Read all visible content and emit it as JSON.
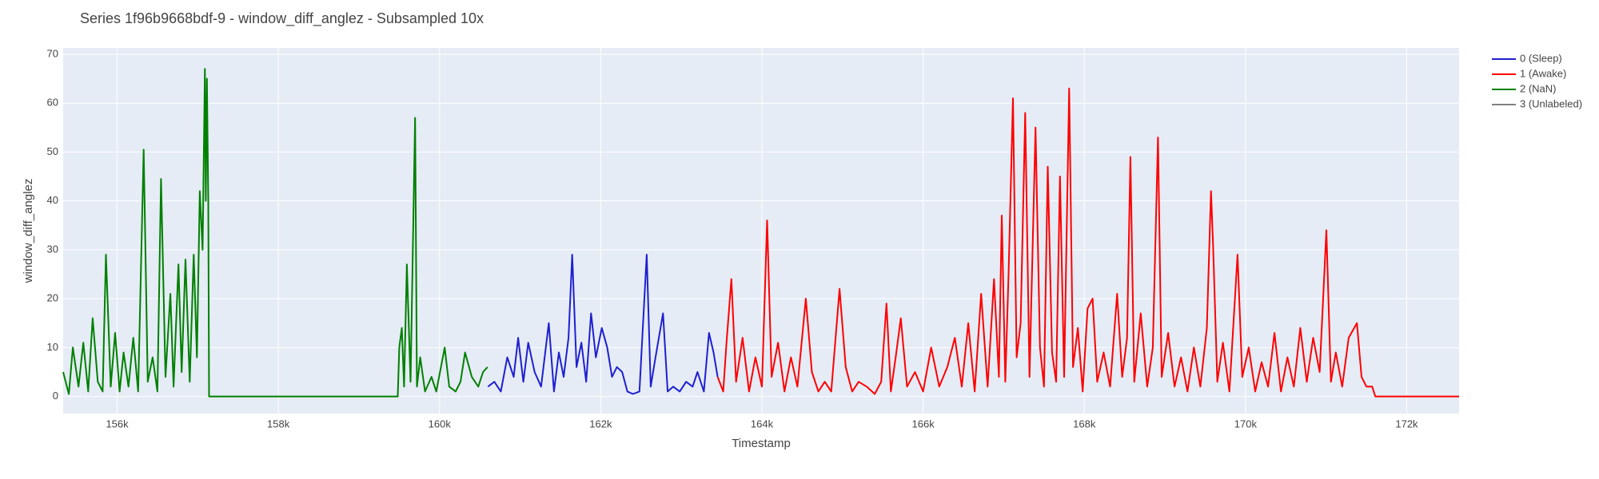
{
  "chart_data": {
    "type": "line",
    "title": "Series 1f96b9668bdf-9 - window_diff_anglez - Subsampled 10x",
    "x_label": "Timestamp",
    "y_label": "window_diff_anglez",
    "xlim": [
      155330,
      172650
    ],
    "ylim": [
      -3.5,
      71.3
    ],
    "xticks": [
      {
        "value": 156000,
        "label": "156k"
      },
      {
        "value": 158000,
        "label": "158k"
      },
      {
        "value": 160000,
        "label": "160k"
      },
      {
        "value": 162000,
        "label": "162k"
      },
      {
        "value": 164000,
        "label": "164k"
      },
      {
        "value": 166000,
        "label": "166k"
      },
      {
        "value": 168000,
        "label": "168k"
      },
      {
        "value": 170000,
        "label": "170k"
      },
      {
        "value": 172000,
        "label": "172k"
      }
    ],
    "yticks": [
      0,
      10,
      20,
      30,
      40,
      50,
      60,
      70
    ],
    "grid": true,
    "legend": "right",
    "series": [
      {
        "name": "0 (Sleep)",
        "color": "#1f1fd0",
        "x": [
          160600,
          160680,
          160760,
          160840,
          160920,
          160975,
          161040,
          161100,
          161180,
          161260,
          161355,
          161420,
          161480,
          161540,
          161600,
          161646,
          161700,
          161760,
          161820,
          161880,
          161940,
          162013,
          162080,
          162140,
          162200,
          162266,
          162330,
          162400,
          162480,
          162570,
          162620,
          162680,
          162773,
          162830,
          162900,
          162980,
          163060,
          163140,
          163200,
          163280,
          163343,
          163400,
          163450
        ],
        "values": [
          2,
          3,
          1,
          8,
          4,
          12,
          3,
          11,
          5,
          2,
          15,
          1,
          9,
          4,
          12,
          29,
          6,
          11,
          3,
          17,
          8,
          14,
          10,
          4,
          6,
          5,
          1,
          0.5,
          1,
          29,
          2,
          8,
          17,
          1,
          2,
          1,
          3,
          2,
          5,
          1,
          13,
          9,
          4
        ]
      },
      {
        "name": "1 (Awake)",
        "color": "#ff0000",
        "x": [
          163450,
          163520,
          163560,
          163621,
          163680,
          163760,
          163840,
          163920,
          164000,
          164064,
          164120,
          164200,
          164280,
          164360,
          164440,
          164545,
          164620,
          164700,
          164780,
          164860,
          164963,
          165040,
          165120,
          165200,
          165300,
          165400,
          165480,
          165545,
          165600,
          165660,
          165723,
          165800,
          165900,
          166000,
          166100,
          166200,
          166300,
          166394,
          166480,
          166560,
          166640,
          166720,
          166800,
          166880,
          166940,
          166976,
          167020,
          167060,
          167115,
          167160,
          167210,
          167267,
          167320,
          167394,
          167450,
          167500,
          167546,
          167600,
          167650,
          167698,
          167750,
          167812,
          167860,
          167920,
          167980,
          168040,
          168103,
          168160,
          168240,
          168320,
          168407,
          168470,
          168530,
          168572,
          168620,
          168700,
          168780,
          168850,
          168914,
          168960,
          169040,
          169120,
          169200,
          169280,
          169360,
          169440,
          169520,
          169572,
          169598,
          169650,
          169720,
          169800,
          169901,
          169960,
          170040,
          170120,
          170200,
          170280,
          170360,
          170440,
          170520,
          170600,
          170680,
          170760,
          170840,
          170920,
          171003,
          171060,
          171120,
          171200,
          171280,
          171382,
          171440,
          171500,
          171572,
          171610,
          172650
        ],
        "values": [
          4,
          1,
          11,
          24,
          3,
          12,
          1,
          8,
          2,
          36,
          4,
          11,
          1,
          8,
          2,
          20,
          5,
          1,
          3,
          1,
          22,
          6,
          1,
          3,
          2,
          0.5,
          3,
          19,
          1,
          8,
          16,
          2,
          5,
          1,
          10,
          2,
          6,
          12,
          2,
          15,
          1,
          21,
          2,
          24,
          4,
          37,
          3,
          25,
          61,
          8,
          15,
          58,
          4,
          55,
          10,
          2,
          47,
          9,
          3,
          45,
          4,
          63,
          6,
          14,
          1,
          18,
          20,
          3,
          9,
          2,
          21,
          4,
          12,
          49,
          3,
          17,
          2,
          10,
          53,
          4,
          13,
          2,
          8,
          1,
          10,
          2,
          14,
          42,
          31,
          3,
          11,
          1,
          29,
          4,
          10,
          1,
          7,
          2,
          13,
          1,
          8,
          2,
          14,
          3,
          12,
          5,
          34,
          3,
          9,
          2,
          12,
          15,
          4,
          2,
          2,
          0,
          0
        ]
      },
      {
        "name": "2 (NaN)",
        "color": "#008000",
        "x": [
          155330,
          155400,
          155450,
          155520,
          155580,
          155640,
          155696,
          155760,
          155820,
          155861,
          155920,
          155975,
          156030,
          156080,
          156140,
          156200,
          156260,
          156329,
          156380,
          156440,
          156500,
          156544,
          156600,
          156660,
          156700,
          156760,
          156800,
          156848,
          156900,
          156950,
          156990,
          157025,
          157060,
          157089,
          157100,
          157114,
          157130,
          157140,
          159481,
          159500,
          159532,
          159560,
          159595,
          159640,
          159697,
          159720,
          159760,
          159820,
          159900,
          159960,
          160064,
          160120,
          160200,
          160260,
          160317,
          160400,
          160480,
          160540,
          160595
        ],
        "values": [
          5,
          0.5,
          10,
          2,
          11,
          1,
          16,
          3,
          1,
          29,
          2,
          13,
          1,
          9,
          2,
          12,
          1,
          50.5,
          3,
          8,
          1,
          44.5,
          4,
          21,
          2,
          27,
          5,
          28,
          3,
          29,
          8,
          42,
          30,
          67,
          40,
          65,
          40,
          0,
          0,
          10,
          14,
          2,
          27,
          3,
          57,
          2,
          8,
          1,
          4,
          1,
          10,
          2,
          1,
          3,
          9,
          4,
          2,
          5,
          6
        ]
      },
      {
        "name": "3 (Unlabeled)",
        "color": "#808080",
        "x": [],
        "values": []
      }
    ]
  }
}
